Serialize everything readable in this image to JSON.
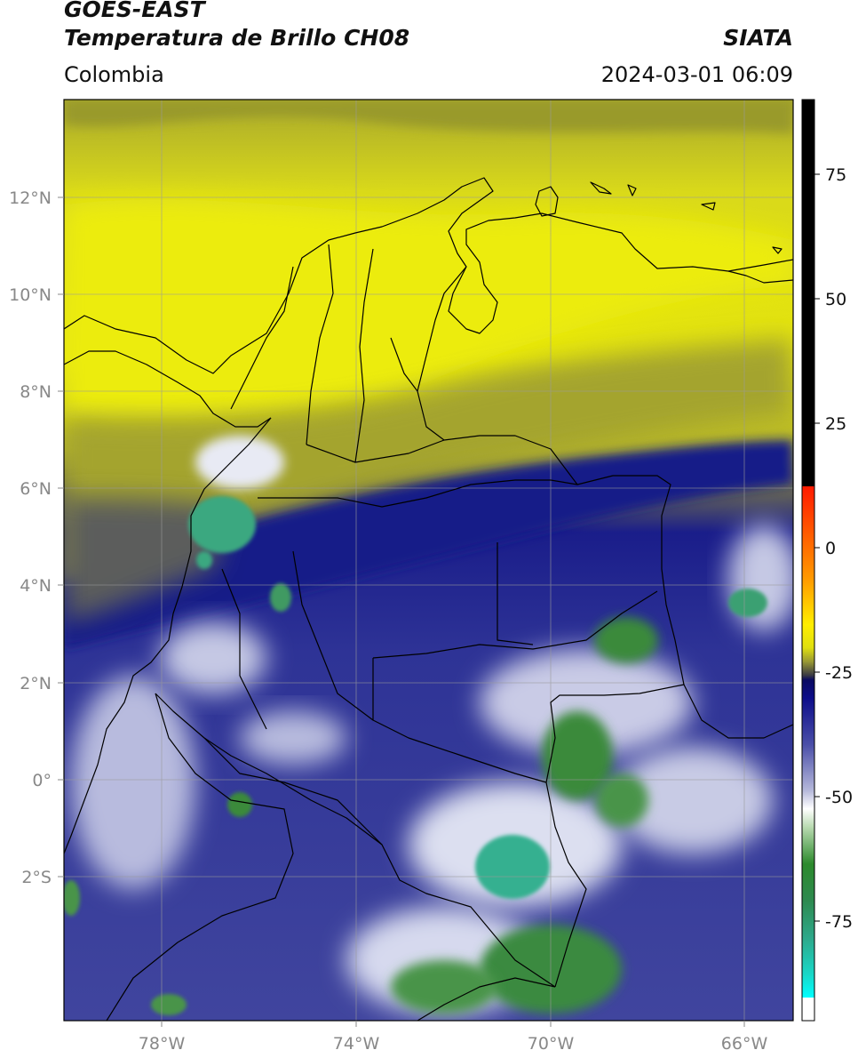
{
  "header": {
    "satellite": "GOES-EAST",
    "product": "Temperatura de Brillo CH08",
    "region": "Colombia",
    "brand": "SIATA",
    "datetime": "2024-03-01 06:09"
  },
  "map": {
    "lon_ticks": [
      "78°W",
      "74°W",
      "70°W",
      "66°W"
    ],
    "lat_ticks": [
      "12°N",
      "10°N",
      "8°N",
      "6°N",
      "4°N",
      "2°N",
      "0°",
      "2°S"
    ],
    "gridlines": true,
    "cloud_colors": {
      "warm_yellow": "#e4e40e",
      "olive": "#a7a72c",
      "deep_blue": "#10148a",
      "mid_blue": "#3a3f9b",
      "white": "#eef0f8",
      "green": "#3b8a3b",
      "teal": "#3aa88a"
    }
  },
  "colorbar": {
    "ticks": [
      "75",
      "50",
      "25",
      "0",
      "-25",
      "-50",
      "-75"
    ],
    "tick_values": [
      75,
      50,
      25,
      0,
      -25,
      -50,
      -75
    ],
    "range": [
      -95,
      90
    ]
  }
}
